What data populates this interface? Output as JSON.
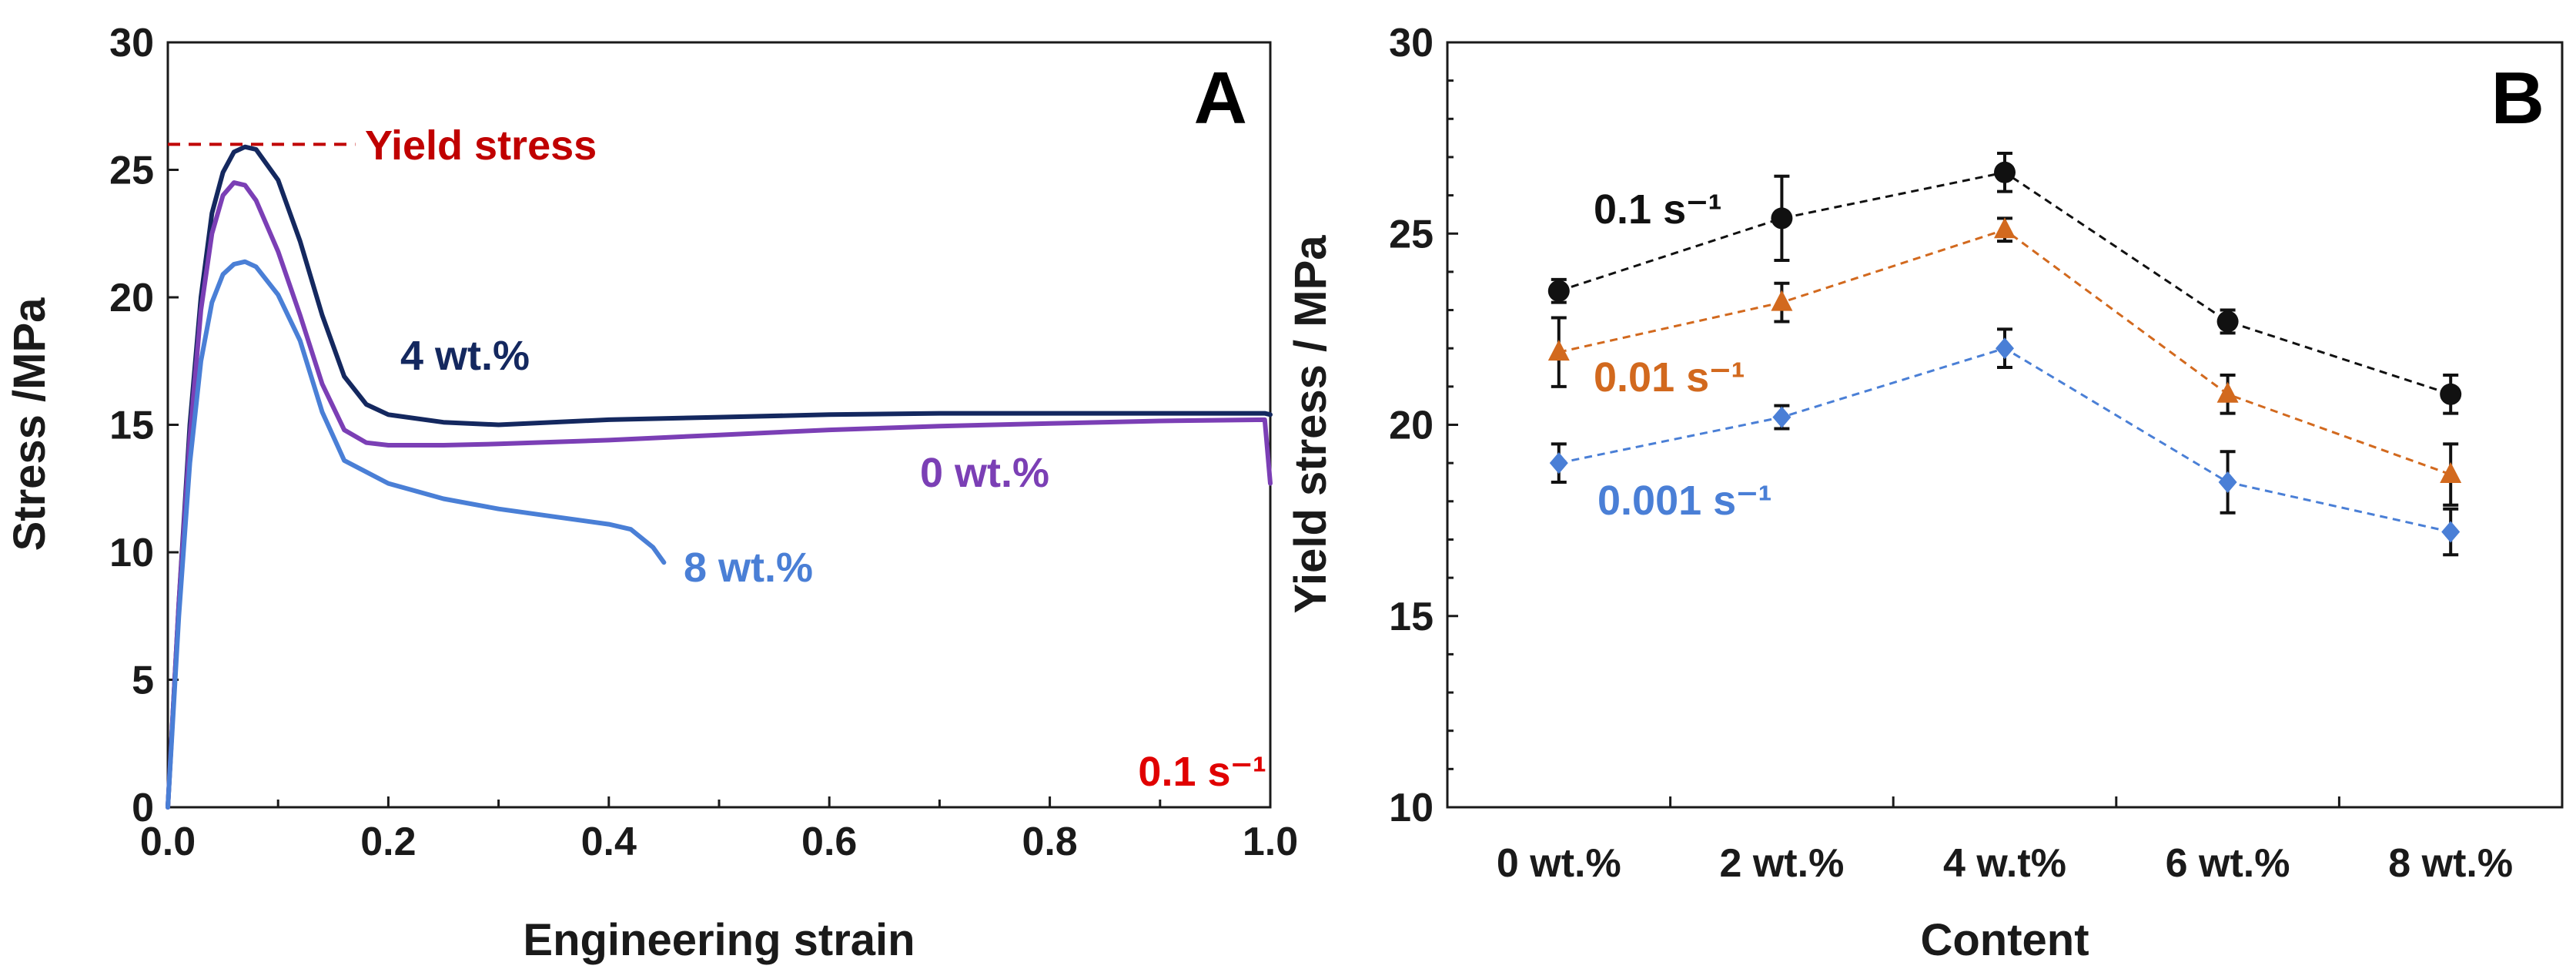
{
  "chart_data": [
    {
      "panel_label": "A",
      "type": "line",
      "xlabel": "Engineering strain",
      "ylabel": "Stress /MPa",
      "xlim": [
        0,
        1.0
      ],
      "ylim": [
        0,
        30
      ],
      "x_ticks": [
        "0.0",
        "0.2",
        "0.4",
        "0.6",
        "0.8",
        "1.0"
      ],
      "y_ticks": [
        "0",
        "5",
        "10",
        "15",
        "20",
        "25",
        "30"
      ],
      "rate_label": "0.1 s⁻¹",
      "yield_line": {
        "label": "Yield stress",
        "value": 26,
        "x_range": [
          0,
          0.17
        ]
      },
      "series": [
        {
          "name": "4 wt.%",
          "color": "#14285f",
          "x": [
            0,
            0.01,
            0.02,
            0.03,
            0.04,
            0.05,
            0.06,
            0.07,
            0.08,
            0.1,
            0.12,
            0.14,
            0.16,
            0.18,
            0.2,
            0.25,
            0.3,
            0.4,
            0.5,
            0.6,
            0.7,
            0.8,
            0.9,
            0.995,
            1.0
          ],
          "values": [
            0,
            8,
            15,
            20,
            23.3,
            24.9,
            25.7,
            25.9,
            25.8,
            24.6,
            22.2,
            19.3,
            16.9,
            15.8,
            15.4,
            15.1,
            15.0,
            15.2,
            15.3,
            15.4,
            15.45,
            15.45,
            15.45,
            15.45,
            15.4
          ]
        },
        {
          "name": "0 wt.%",
          "color": "#7b3fb5",
          "x": [
            0,
            0.01,
            0.02,
            0.03,
            0.04,
            0.05,
            0.06,
            0.07,
            0.08,
            0.1,
            0.12,
            0.14,
            0.16,
            0.18,
            0.2,
            0.25,
            0.3,
            0.4,
            0.5,
            0.6,
            0.7,
            0.8,
            0.9,
            0.995,
            1.0
          ],
          "values": [
            0,
            8,
            14.5,
            19.5,
            22.5,
            24.0,
            24.5,
            24.4,
            23.8,
            21.8,
            19.3,
            16.6,
            14.8,
            14.3,
            14.2,
            14.2,
            14.25,
            14.4,
            14.6,
            14.8,
            14.95,
            15.05,
            15.15,
            15.2,
            12.7
          ]
        },
        {
          "name": "8 wt.%",
          "color": "#4a7fd6",
          "x": [
            0,
            0.01,
            0.02,
            0.03,
            0.04,
            0.05,
            0.06,
            0.07,
            0.08,
            0.1,
            0.12,
            0.14,
            0.16,
            0.2,
            0.25,
            0.3,
            0.35,
            0.4,
            0.42,
            0.44,
            0.45
          ],
          "values": [
            0,
            7.5,
            13.5,
            17.5,
            19.8,
            20.9,
            21.3,
            21.4,
            21.2,
            20.1,
            18.3,
            15.5,
            13.6,
            12.7,
            12.1,
            11.7,
            11.4,
            11.1,
            10.9,
            10.2,
            9.6
          ]
        }
      ]
    },
    {
      "panel_label": "B",
      "type": "scatter",
      "xlabel": "Content",
      "ylabel": "Yield stress / MPa",
      "ylim": [
        10,
        30
      ],
      "y_ticks": [
        "10",
        "15",
        "20",
        "25",
        "30"
      ],
      "categories": [
        "0 wt.%",
        "2 wt.%",
        "4 w.t%",
        "6 wt.%",
        "8 wt.%"
      ],
      "series": [
        {
          "name": "0.1 s⁻¹",
          "color": "#111111",
          "marker": "circle",
          "values": [
            23.5,
            25.4,
            26.6,
            22.7,
            20.8
          ],
          "errors": [
            0.3,
            1.1,
            0.5,
            0.3,
            0.5
          ]
        },
        {
          "name": "0.01 s⁻¹",
          "color": "#d2691e",
          "marker": "triangle",
          "values": [
            21.9,
            23.2,
            25.1,
            20.8,
            18.7
          ],
          "errors": [
            0.9,
            0.5,
            0.3,
            0.5,
            0.8
          ]
        },
        {
          "name": "0.001 s⁻¹",
          "color": "#4a7fd6",
          "marker": "diamond",
          "values": [
            19.0,
            20.2,
            22.0,
            18.5,
            17.2
          ],
          "errors": [
            0.5,
            0.3,
            0.5,
            0.8,
            0.6
          ]
        }
      ]
    }
  ]
}
